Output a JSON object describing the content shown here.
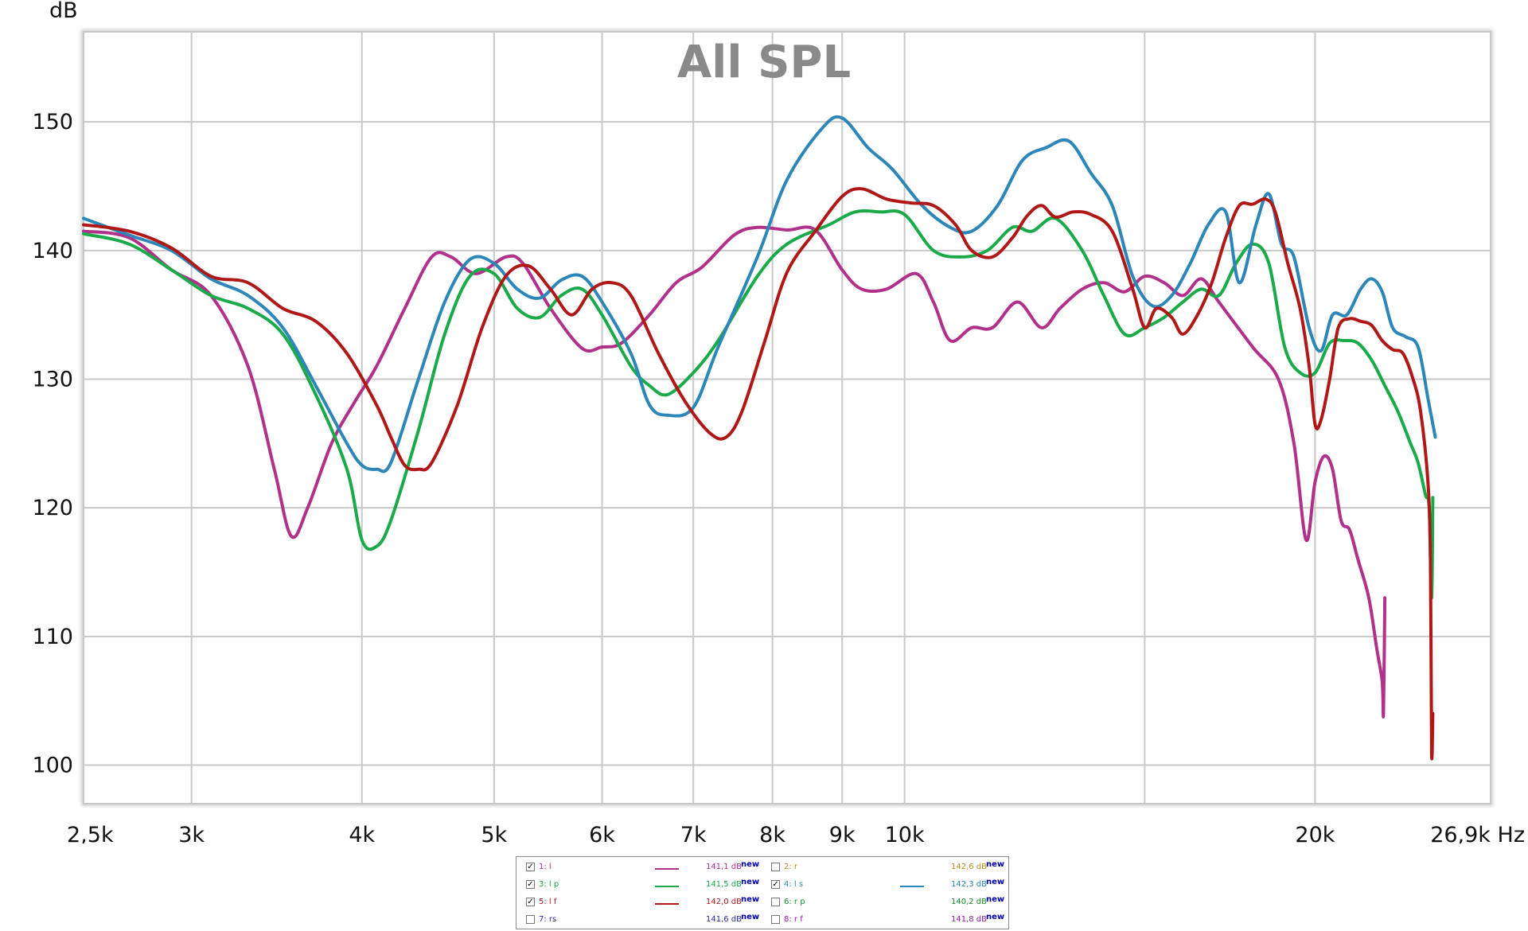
{
  "chart_data": {
    "type": "line",
    "title": "All SPL",
    "ylabel": "dB",
    "x_scale": "log",
    "xlim": [
      2500,
      26900
    ],
    "ylim": [
      97,
      157
    ],
    "grid": true,
    "x_ticks": [
      {
        "value": 2500,
        "label": "2,5k"
      },
      {
        "value": 3000,
        "label": "3k"
      },
      {
        "value": 4000,
        "label": "4k"
      },
      {
        "value": 5000,
        "label": "5k"
      },
      {
        "value": 6000,
        "label": "6k"
      },
      {
        "value": 7000,
        "label": "7k"
      },
      {
        "value": 8000,
        "label": "8k"
      },
      {
        "value": 9000,
        "label": "9k"
      },
      {
        "value": 10000,
        "label": "10k"
      },
      {
        "value": 20000,
        "label": "20k"
      },
      {
        "value": 26900,
        "label": "26,9k Hz"
      }
    ],
    "extra_gridlines_x": [
      15000
    ],
    "y_ticks": [
      100,
      110,
      120,
      130,
      140,
      150
    ],
    "series": [
      {
        "name": "1: l",
        "color": "#b0308a",
        "values": [
          [
            2500,
            141.5
          ],
          [
            2700,
            141
          ],
          [
            2900,
            138.5
          ],
          [
            3100,
            136.5
          ],
          [
            3300,
            131
          ],
          [
            3450,
            123
          ],
          [
            3550,
            117.8
          ],
          [
            3650,
            120
          ],
          [
            3800,
            125
          ],
          [
            3950,
            128.2
          ],
          [
            4100,
            131
          ],
          [
            4300,
            135.5
          ],
          [
            4500,
            139.5
          ],
          [
            4650,
            139.5
          ],
          [
            4850,
            138.2
          ],
          [
            5100,
            139.5
          ],
          [
            5250,
            139
          ],
          [
            5500,
            135.5
          ],
          [
            5800,
            132.4
          ],
          [
            6000,
            132.5
          ],
          [
            6200,
            132.8
          ],
          [
            6500,
            135
          ],
          [
            6800,
            137.5
          ],
          [
            7100,
            138.7
          ],
          [
            7500,
            141.2
          ],
          [
            7800,
            141.8
          ],
          [
            8200,
            141.6
          ],
          [
            8600,
            141.6
          ],
          [
            9000,
            138.5
          ],
          [
            9300,
            137
          ],
          [
            9700,
            137
          ],
          [
            10200,
            138.2
          ],
          [
            10500,
            136
          ],
          [
            10800,
            133
          ],
          [
            11200,
            134
          ],
          [
            11600,
            134
          ],
          [
            12100,
            136
          ],
          [
            12600,
            134
          ],
          [
            13000,
            135.5
          ],
          [
            13500,
            137
          ],
          [
            14000,
            137.5
          ],
          [
            14500,
            136.8
          ],
          [
            15000,
            138
          ],
          [
            15500,
            137.5
          ],
          [
            16000,
            136.5
          ],
          [
            16500,
            137.8
          ],
          [
            17000,
            136
          ],
          [
            18000,
            132.5
          ],
          [
            18800,
            130
          ],
          [
            19300,
            125
          ],
          [
            19700,
            117.5
          ],
          [
            20000,
            122
          ],
          [
            20300,
            124
          ],
          [
            20600,
            123
          ],
          [
            20900,
            119
          ],
          [
            21200,
            118.3
          ],
          [
            21500,
            116
          ],
          [
            21900,
            113
          ],
          [
            22200,
            109
          ],
          [
            22400,
            106.5
          ],
          [
            22450,
            104
          ],
          [
            22500,
            113
          ]
        ]
      },
      {
        "name": "3: l p",
        "color": "#1aaa4a",
        "values": [
          [
            2500,
            141.3
          ],
          [
            2700,
            140.5
          ],
          [
            2900,
            138.5
          ],
          [
            3100,
            136.5
          ],
          [
            3300,
            135.5
          ],
          [
            3500,
            133.5
          ],
          [
            3700,
            128.8
          ],
          [
            3900,
            123
          ],
          [
            4000,
            117.5
          ],
          [
            4100,
            117
          ],
          [
            4200,
            119
          ],
          [
            4400,
            126
          ],
          [
            4600,
            133.5
          ],
          [
            4800,
            138
          ],
          [
            5000,
            138.2
          ],
          [
            5200,
            135.5
          ],
          [
            5400,
            134.8
          ],
          [
            5600,
            136.5
          ],
          [
            5800,
            137
          ],
          [
            6000,
            135
          ],
          [
            6300,
            131
          ],
          [
            6500,
            129.5
          ],
          [
            6700,
            128.8
          ],
          [
            7000,
            130.5
          ],
          [
            7300,
            133
          ],
          [
            7800,
            138
          ],
          [
            8200,
            140.5
          ],
          [
            8800,
            142
          ],
          [
            9200,
            143
          ],
          [
            9600,
            143
          ],
          [
            10000,
            142.8
          ],
          [
            10500,
            140
          ],
          [
            11000,
            139.5
          ],
          [
            11500,
            140
          ],
          [
            12000,
            141.8
          ],
          [
            12400,
            141.5
          ],
          [
            12900,
            142.5
          ],
          [
            13500,
            140
          ],
          [
            14000,
            136.5
          ],
          [
            14500,
            133.5
          ],
          [
            15000,
            134
          ],
          [
            15500,
            134.8
          ],
          [
            16000,
            136
          ],
          [
            16500,
            137
          ],
          [
            17000,
            136.5
          ],
          [
            17500,
            139
          ],
          [
            18000,
            140.5
          ],
          [
            18500,
            139
          ],
          [
            19000,
            132.5
          ],
          [
            19500,
            130.5
          ],
          [
            20000,
            130.5
          ],
          [
            20500,
            132.8
          ],
          [
            21000,
            133
          ],
          [
            21500,
            132.8
          ],
          [
            22000,
            131.5
          ],
          [
            22500,
            129.5
          ],
          [
            23000,
            127.5
          ],
          [
            23500,
            125
          ],
          [
            23800,
            123.5
          ],
          [
            24100,
            121
          ],
          [
            24250,
            120
          ],
          [
            24350,
            113
          ],
          [
            24400,
            120.8
          ]
        ]
      },
      {
        "name": "4: l s",
        "color": "#2c86b8",
        "values": [
          [
            2500,
            142.5
          ],
          [
            2700,
            141.2
          ],
          [
            2900,
            140
          ],
          [
            3100,
            137.8
          ],
          [
            3300,
            136.5
          ],
          [
            3500,
            134
          ],
          [
            3700,
            129.5
          ],
          [
            3900,
            125
          ],
          [
            4000,
            123.3
          ],
          [
            4100,
            123
          ],
          [
            4200,
            123.5
          ],
          [
            4400,
            130
          ],
          [
            4600,
            136
          ],
          [
            4800,
            139.3
          ],
          [
            5000,
            139
          ],
          [
            5200,
            137
          ],
          [
            5400,
            136.3
          ],
          [
            5600,
            137.7
          ],
          [
            5800,
            138
          ],
          [
            6000,
            136
          ],
          [
            6300,
            132
          ],
          [
            6500,
            128
          ],
          [
            6700,
            127.2
          ],
          [
            7000,
            127.8
          ],
          [
            7300,
            132.5
          ],
          [
            7800,
            139.5
          ],
          [
            8200,
            145.5
          ],
          [
            8700,
            149.5
          ],
          [
            9000,
            150.3
          ],
          [
            9400,
            148
          ],
          [
            9800,
            146.3
          ],
          [
            10300,
            143.5
          ],
          [
            10800,
            141.8
          ],
          [
            11200,
            141.5
          ],
          [
            11700,
            143.5
          ],
          [
            12200,
            147
          ],
          [
            12700,
            148
          ],
          [
            13200,
            148.5
          ],
          [
            13700,
            146
          ],
          [
            14200,
            143.5
          ],
          [
            14700,
            138
          ],
          [
            15200,
            135.7
          ],
          [
            15700,
            136.5
          ],
          [
            16200,
            139
          ],
          [
            16700,
            142
          ],
          [
            17200,
            143
          ],
          [
            17600,
            137.5
          ],
          [
            18100,
            142
          ],
          [
            18500,
            144.4
          ],
          [
            18900,
            140.5
          ],
          [
            19300,
            139.5
          ],
          [
            19800,
            134
          ],
          [
            20200,
            132.2
          ],
          [
            20600,
            135
          ],
          [
            21100,
            135
          ],
          [
            21600,
            137
          ],
          [
            22000,
            137.8
          ],
          [
            22400,
            136.8
          ],
          [
            22800,
            134
          ],
          [
            23300,
            133.3
          ],
          [
            23800,
            132.5
          ],
          [
            24200,
            128.5
          ],
          [
            24500,
            125.5
          ]
        ]
      },
      {
        "name": "5: l f",
        "color": "#b01818",
        "values": [
          [
            2500,
            142
          ],
          [
            2700,
            141.5
          ],
          [
            2900,
            140.2
          ],
          [
            3100,
            138
          ],
          [
            3300,
            137.5
          ],
          [
            3500,
            135.5
          ],
          [
            3700,
            134.5
          ],
          [
            3900,
            132
          ],
          [
            4100,
            128
          ],
          [
            4200,
            125.5
          ],
          [
            4300,
            123.3
          ],
          [
            4400,
            123
          ],
          [
            4500,
            123.5
          ],
          [
            4700,
            128
          ],
          [
            4900,
            134
          ],
          [
            5100,
            138
          ],
          [
            5300,
            138.8
          ],
          [
            5500,
            137
          ],
          [
            5700,
            135
          ],
          [
            5900,
            137
          ],
          [
            6100,
            137.5
          ],
          [
            6300,
            136.5
          ],
          [
            6600,
            132
          ],
          [
            6900,
            128.3
          ],
          [
            7200,
            125.8
          ],
          [
            7400,
            125.5
          ],
          [
            7600,
            127.5
          ],
          [
            7900,
            133
          ],
          [
            8200,
            138.3
          ],
          [
            8600,
            141.5
          ],
          [
            9000,
            144.2
          ],
          [
            9300,
            144.8
          ],
          [
            9700,
            144
          ],
          [
            10100,
            143.7
          ],
          [
            10500,
            143.5
          ],
          [
            10900,
            142
          ],
          [
            11200,
            140
          ],
          [
            11600,
            139.5
          ],
          [
            12000,
            141
          ],
          [
            12300,
            142.7
          ],
          [
            12600,
            143.5
          ],
          [
            12900,
            142.6
          ],
          [
            13300,
            143
          ],
          [
            13700,
            142.8
          ],
          [
            14200,
            141.5
          ],
          [
            14700,
            137
          ],
          [
            15000,
            134
          ],
          [
            15300,
            135.5
          ],
          [
            15700,
            134.8
          ],
          [
            16000,
            133.5
          ],
          [
            16400,
            135
          ],
          [
            16800,
            137.5
          ],
          [
            17200,
            141
          ],
          [
            17600,
            143.5
          ],
          [
            18000,
            143.6
          ],
          [
            18400,
            144
          ],
          [
            18700,
            143
          ],
          [
            19100,
            139
          ],
          [
            19500,
            135.5
          ],
          [
            19800,
            131
          ],
          [
            20000,
            126.5
          ],
          [
            20200,
            126.8
          ],
          [
            20500,
            130
          ],
          [
            20800,
            134
          ],
          [
            21200,
            134.7
          ],
          [
            21600,
            134.5
          ],
          [
            22000,
            134.2
          ],
          [
            22400,
            133
          ],
          [
            22800,
            132.3
          ],
          [
            23200,
            132
          ],
          [
            23600,
            130
          ],
          [
            23900,
            127.5
          ],
          [
            24200,
            122
          ],
          [
            24300,
            116
          ],
          [
            24350,
            101
          ],
          [
            24400,
            104
          ]
        ]
      }
    ]
  },
  "legend": [
    {
      "name": "1: l",
      "checked": true,
      "value": "141,1 dB",
      "color": "#b0308a",
      "line": true
    },
    {
      "name": "2: r",
      "checked": false,
      "value": "142,6 dB",
      "color": "#c08a20",
      "line": false
    },
    {
      "name": "3: l p",
      "checked": true,
      "value": "141,5 dB",
      "color": "#1aaa4a",
      "line": true
    },
    {
      "name": "4: l s",
      "checked": true,
      "value": "142,3 dB",
      "color": "#2c86b8",
      "line": true
    },
    {
      "name": "5: l f",
      "checked": true,
      "value": "142,0 dB",
      "color": "#b01818",
      "line": true
    },
    {
      "name": "6: r p",
      "checked": false,
      "value": "140,2 dB",
      "color": "#1a8a2a",
      "line": false
    },
    {
      "name": "7: rs",
      "checked": false,
      "value": "141,6 dB",
      "color": "#2a2a9a",
      "line": false
    },
    {
      "name": "8: r f",
      "checked": false,
      "value": "141,8 dB",
      "color": "#8a1a9a",
      "line": false
    }
  ],
  "legend_new_label": "new",
  "legend_check_mark": "✓"
}
